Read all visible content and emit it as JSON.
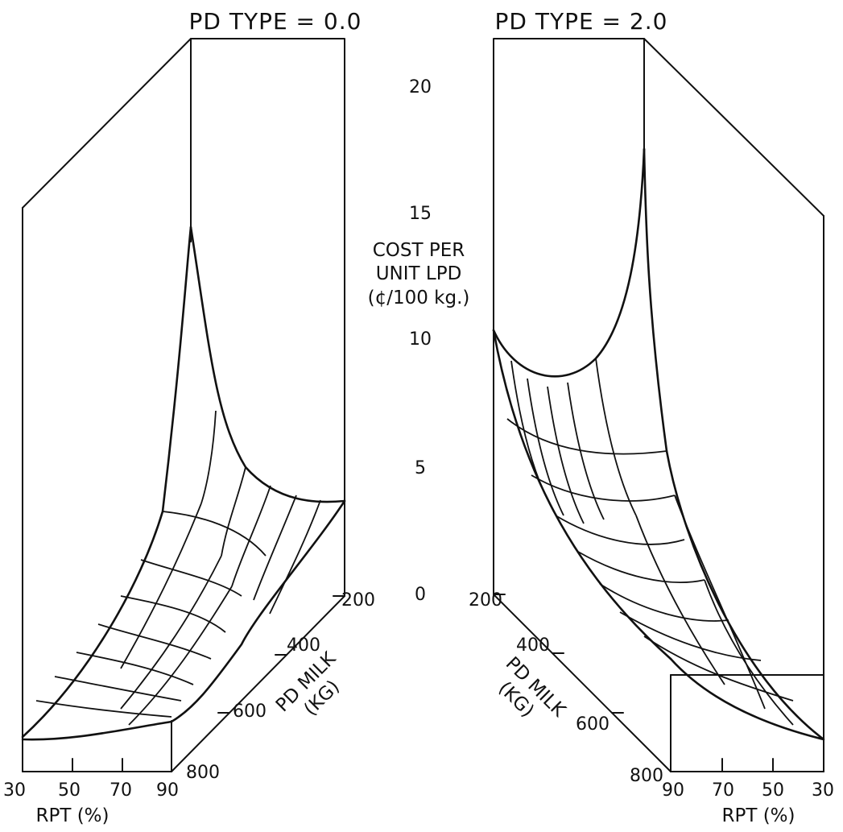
{
  "chart_data": {
    "type": "3d-surface",
    "zaxis": {
      "label_lines": [
        "COST PER",
        "UNIT LPD",
        "(¢/100 kg.)"
      ],
      "ticks": [
        "0",
        "5",
        "10",
        "15",
        "20"
      ],
      "range": [
        0,
        22
      ]
    },
    "panels": [
      {
        "title": "PD TYPE = 0.0",
        "x_label": "RPT (%)",
        "x_ticks": [
          "30",
          "50",
          "70",
          "90"
        ],
        "y_label_lines": [
          "PD MILK",
          "(KG)"
        ],
        "y_ticks": [
          "200",
          "400",
          "600",
          "800"
        ],
        "peak_cost": 14.2
      },
      {
        "title": "PD TYPE = 2.0",
        "x_label": "RPT (%)",
        "x_ticks": [
          "90",
          "70",
          "50",
          "30"
        ],
        "y_label_lines": [
          "PD MILK",
          "(KG)"
        ],
        "y_ticks": [
          "200",
          "400",
          "600",
          "800"
        ],
        "peak_cost": 17.8
      }
    ]
  }
}
